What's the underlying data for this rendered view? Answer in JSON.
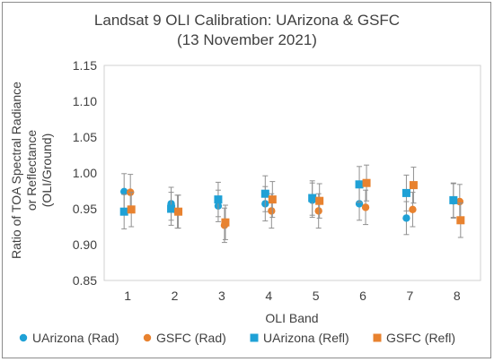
{
  "chart_data": {
    "type": "scatter",
    "title_lines": [
      "Landsat 9 OLI Calibration: UArizona & GSFC",
      "(13 November 2021)"
    ],
    "xlabel": "OLI Band",
    "ylabel_lines": [
      "Ratio of TOA Spectral Radiance",
      "or Reflectance",
      "(OLI/Ground)"
    ],
    "categories": [
      "1",
      "2",
      "3",
      "4",
      "5",
      "6",
      "7",
      "8"
    ],
    "ylim": [
      0.85,
      1.15
    ],
    "yticks": [
      "0.85",
      "0.90",
      "0.95",
      "1.00",
      "1.05",
      "1.10",
      "1.15"
    ],
    "grid": false,
    "legend_position": "bottom",
    "series": [
      {
        "name": "UArizona (Rad)",
        "marker": "circle",
        "color": "#1fa1d6",
        "values": [
          0.974,
          0.957,
          0.954,
          0.957,
          0.962,
          0.957,
          0.937,
          0.961
        ],
        "error": [
          0.025,
          0.023,
          0.022,
          0.024,
          0.024,
          0.023,
          0.023,
          0.024
        ]
      },
      {
        "name": "GSFC (Rad)",
        "marker": "circle",
        "color": "#e8822f",
        "values": [
          0.973,
          0.946,
          0.927,
          0.947,
          0.947,
          0.952,
          0.949,
          0.96
        ],
        "error": [
          0.025,
          0.023,
          0.024,
          0.024,
          0.024,
          0.024,
          0.024,
          0.024
        ]
      },
      {
        "name": "UArizona (Refl)",
        "marker": "square",
        "color": "#1fa1d6",
        "values": [
          0.946,
          0.95,
          0.963,
          0.971,
          0.965,
          0.984,
          0.972,
          0.962
        ],
        "error": [
          0.024,
          0.023,
          0.024,
          0.025,
          0.024,
          0.025,
          0.025,
          0.024
        ]
      },
      {
        "name": "GSFC (Refl)",
        "marker": "square",
        "color": "#e8822f",
        "values": [
          0.949,
          0.946,
          0.931,
          0.963,
          0.961,
          0.986,
          0.983,
          0.934
        ],
        "error": [
          0.024,
          0.023,
          0.024,
          0.025,
          0.024,
          0.025,
          0.025,
          0.024
        ]
      }
    ]
  }
}
